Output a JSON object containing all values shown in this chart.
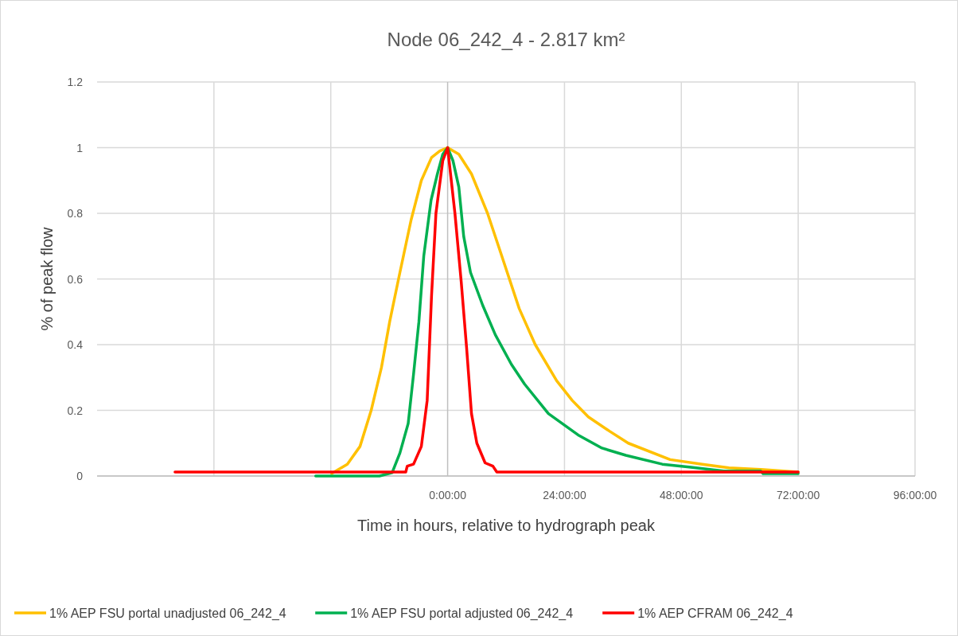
{
  "chart_data": {
    "type": "line",
    "title": "Node 06_242_4 - 2.817 km²",
    "xlabel": "Time in hours, relative to hydrograph peak",
    "ylabel": "% of peak flow",
    "xlim": [
      -72,
      96
    ],
    "xticks": [
      {
        "value": -48,
        "label": null
      },
      {
        "value": -24,
        "label": null
      },
      {
        "value": 0,
        "label": "0:00:00"
      },
      {
        "value": 24,
        "label": "24:00:00"
      },
      {
        "value": 48,
        "label": "48:00:00"
      },
      {
        "value": 72,
        "label": "72:00:00"
      },
      {
        "value": 96,
        "label": "96:00:00"
      }
    ],
    "ylim": [
      0,
      1.2
    ],
    "yticks": [
      0,
      0.2,
      0.4,
      0.6,
      0.8,
      1,
      1.2
    ],
    "grid": true,
    "legend": "bottom",
    "marker": "none",
    "line_style": "solid",
    "series": [
      {
        "name": "1% AEP FSU portal unadjusted 06_242_4",
        "color": "#ffc000",
        "x": [
          -23.8,
          -20.6,
          -18,
          -15.7,
          -13.6,
          -11.9,
          -9.8,
          -7.5,
          -5.4,
          -3.3,
          -1.6,
          0,
          2.3,
          4.9,
          8.2,
          10.9,
          14.7,
          18,
          22.4,
          25.6,
          28.9,
          33.3,
          37.1,
          45.7,
          52.3,
          57.8,
          64.3,
          72
        ],
        "values": [
          0.008,
          0.036,
          0.09,
          0.2,
          0.33,
          0.47,
          0.62,
          0.78,
          0.9,
          0.97,
          0.99,
          1,
          0.98,
          0.92,
          0.8,
          0.68,
          0.51,
          0.4,
          0.29,
          0.23,
          0.18,
          0.136,
          0.1,
          0.05,
          0.036,
          0.025,
          0.02,
          0.012
        ]
      },
      {
        "name": "1% AEP FSU portal adjusted 06_242_4",
        "color": "#00b050",
        "x": [
          -27.1,
          -14,
          -11.4,
          -9.8,
          -8.1,
          -7,
          -5.9,
          -4.9,
          -3.4,
          -2.1,
          -1,
          0,
          1.1,
          2.3,
          3.3,
          4.7,
          7.2,
          9.8,
          13.1,
          15.8,
          20.7,
          26.8,
          31.7,
          36.6,
          44.1,
          49.6,
          56.7,
          64.3,
          64.8,
          72
        ],
        "values": [
          0,
          0,
          0.01,
          0.07,
          0.16,
          0.31,
          0.47,
          0.67,
          0.84,
          0.92,
          0.98,
          1,
          0.96,
          0.88,
          0.73,
          0.62,
          0.52,
          0.43,
          0.34,
          0.28,
          0.19,
          0.125,
          0.085,
          0.063,
          0.036,
          0.027,
          0.015,
          0.015,
          0.007,
          0.007
        ]
      },
      {
        "name": "1% AEP CFRAM 06_242_4",
        "color": "#ff0000",
        "x": [
          -56,
          -8.6,
          -8.3,
          -7,
          -5.4,
          -4.2,
          -3.3,
          -2.4,
          -1,
          0,
          1.5,
          2.8,
          3.9,
          4.9,
          6,
          7.7,
          9.3,
          10.1,
          72
        ],
        "values": [
          0.012,
          0.012,
          0.03,
          0.036,
          0.09,
          0.23,
          0.55,
          0.8,
          0.96,
          1,
          0.8,
          0.59,
          0.39,
          0.19,
          0.1,
          0.04,
          0.03,
          0.012,
          0.012
        ]
      }
    ]
  }
}
